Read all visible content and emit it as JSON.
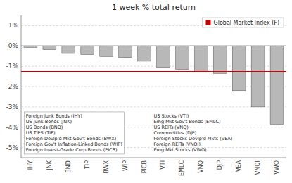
{
  "chart_data": {
    "type": "bar",
    "title": "1 week % total return",
    "categories": [
      "IHY",
      "JNK",
      "BND",
      "TIP",
      "BWX",
      "WIP",
      "PICB",
      "VTI",
      "EMLC",
      "VNQ",
      "DJP",
      "VEA",
      "VNQI",
      "VWO"
    ],
    "values": [
      -0.07,
      -0.18,
      -0.37,
      -0.42,
      -0.52,
      -0.57,
      -0.75,
      -1.05,
      -1.15,
      -1.3,
      -1.35,
      -2.2,
      -3.0,
      -3.85
    ],
    "color": "#b8b8b8",
    "ylim": [
      -5.5,
      1.5
    ],
    "yticks": [
      {
        "value": 1,
        "label": "1%"
      },
      {
        "value": 0,
        "label": "0%"
      },
      {
        "value": -1,
        "label": "-1%"
      },
      {
        "value": -2,
        "label": "-2%"
      },
      {
        "value": -3,
        "label": "-3%"
      },
      {
        "value": -4,
        "label": "-4%"
      },
      {
        "value": -5,
        "label": "-5%"
      }
    ],
    "grid": true,
    "legend": "upper right",
    "reference_line": {
      "name": "Global Market Index (F)",
      "value": -1.26,
      "color": "#cc0000"
    },
    "annotations": [
      [
        "Foreign Junk Bonds (IHY)",
        "US Junk Bonds (JNK)",
        "US Bonds (BND)",
        "US TIPS (TIP)",
        "Foreign Devlp'd Mkt Gov't Bonds (BWX)",
        "Foreign Gov't Inflation-Linked Bonds (WIP)",
        "Foreign Invest-Grade Corp Bonds (PICB)"
      ],
      [
        "US Stocks (VTI)",
        "Emg Mkt Gov't Bonds (EMLC)",
        "US REITs (VNQ)",
        "Commodities (DJP)",
        "Foreign Stocks Devlp'd Mkts (VEA)",
        "Foreign REITs (VNQI)",
        "Emg Mkt Stocks (VWO)"
      ]
    ]
  }
}
